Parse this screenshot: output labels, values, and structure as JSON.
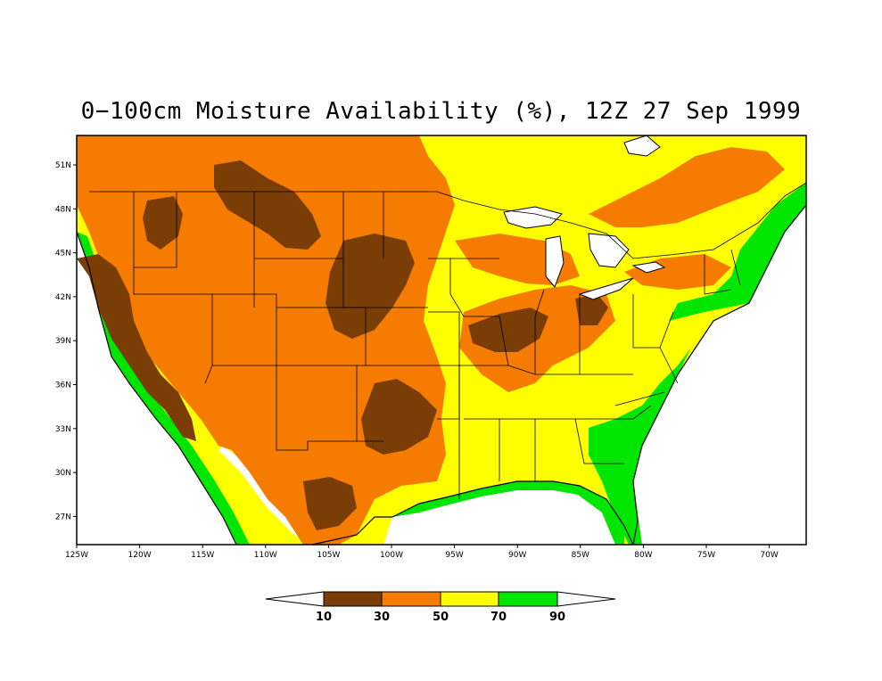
{
  "title": "0−100cm Moisture Availability (%), 12Z 27 Sep 1999",
  "colors": {
    "very_dry": "#7a3d06",
    "dry": "#f57c00",
    "moderate": "#ffff00",
    "wet": "#00e600",
    "very_wet": "#ffffff",
    "outline": "#000000"
  },
  "lat_labels": [
    "51N",
    "48N",
    "45N",
    "42N",
    "39N",
    "36N",
    "33N",
    "30N",
    "27N"
  ],
  "lon_labels": [
    "125W",
    "120W",
    "115W",
    "110W",
    "105W",
    "100W",
    "95W",
    "90W",
    "85W",
    "80W",
    "75W",
    "70W"
  ],
  "colorbar": {
    "labels": [
      "10",
      "30",
      "50",
      "70",
      "90"
    ]
  }
}
